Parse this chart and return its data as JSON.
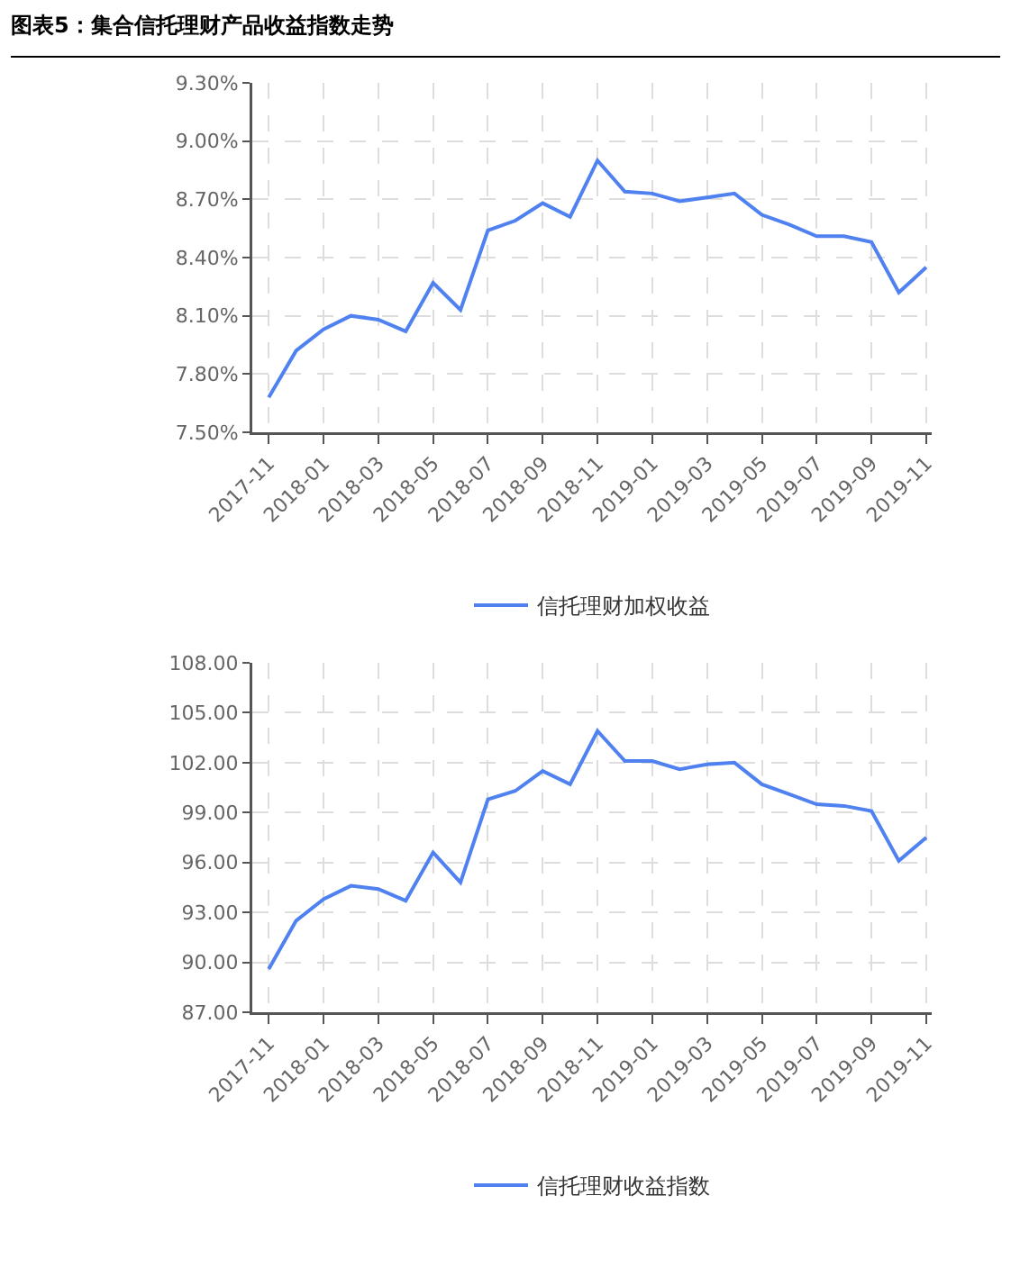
{
  "chart_data": [
    {
      "type": "line",
      "title": "图表5：集合信托理财产品收益指数走势",
      "categories": [
        "2017-11",
        null,
        "2018-01",
        null,
        "2018-03",
        null,
        "2018-05",
        null,
        "2018-07",
        null,
        "2018-09",
        null,
        "2018-11",
        null,
        "2019-01",
        null,
        "2019-03",
        null,
        "2019-05",
        null,
        "2019-07",
        null,
        "2019-09",
        null,
        "2019-11"
      ],
      "series": [
        {
          "name": "信托理财加权收益",
          "color": "#4f81f0",
          "values": [
            7.68,
            7.92,
            8.03,
            8.1,
            8.08,
            8.02,
            8.27,
            8.13,
            8.54,
            8.59,
            8.68,
            8.61,
            8.9,
            8.74,
            8.73,
            8.69,
            8.71,
            8.73,
            8.62,
            8.57,
            8.51,
            8.51,
            8.48,
            8.22,
            8.35
          ]
        }
      ],
      "ylim": [
        7.5,
        9.3
      ],
      "yticks": [
        {
          "value": 7.5,
          "label": "7.50%"
        },
        {
          "value": 7.8,
          "label": "7.80%"
        },
        {
          "value": 8.1,
          "label": "8.10%"
        },
        {
          "value": 8.4,
          "label": "8.40%"
        },
        {
          "value": 8.7,
          "label": "8.70%"
        },
        {
          "value": 9.0,
          "label": "9.00%"
        },
        {
          "value": 9.3,
          "label": "9.30%"
        }
      ],
      "grid": true,
      "legend": "bottom",
      "marker": "none",
      "line_style": "solid"
    },
    {
      "type": "line",
      "categories": [
        "2017-11",
        null,
        "2018-01",
        null,
        "2018-03",
        null,
        "2018-05",
        null,
        "2018-07",
        null,
        "2018-09",
        null,
        "2018-11",
        null,
        "2019-01",
        null,
        "2019-03",
        null,
        "2019-05",
        null,
        "2019-07",
        null,
        "2019-09",
        null,
        "2019-11"
      ],
      "series": [
        {
          "name": "信托理财收益指数",
          "color": "#4f81f0",
          "values": [
            89.6,
            92.5,
            93.8,
            94.6,
            94.4,
            93.7,
            96.6,
            94.8,
            99.8,
            100.3,
            101.5,
            100.7,
            103.9,
            102.1,
            102.1,
            101.6,
            101.9,
            102.0,
            100.7,
            100.1,
            99.5,
            99.4,
            99.1,
            96.1,
            97.5
          ]
        }
      ],
      "ylim": [
        87,
        108
      ],
      "yticks": [
        {
          "value": 87,
          "label": "87.00"
        },
        {
          "value": 90,
          "label": "90.00"
        },
        {
          "value": 93,
          "label": "93.00"
        },
        {
          "value": 96,
          "label": "96.00"
        },
        {
          "value": 99,
          "label": "99.00"
        },
        {
          "value": 102,
          "label": "102.00"
        },
        {
          "value": 105,
          "label": "105.00"
        },
        {
          "value": 108,
          "label": "108.00"
        }
      ],
      "grid": true,
      "legend": "bottom",
      "marker": "none",
      "line_style": "solid"
    }
  ]
}
